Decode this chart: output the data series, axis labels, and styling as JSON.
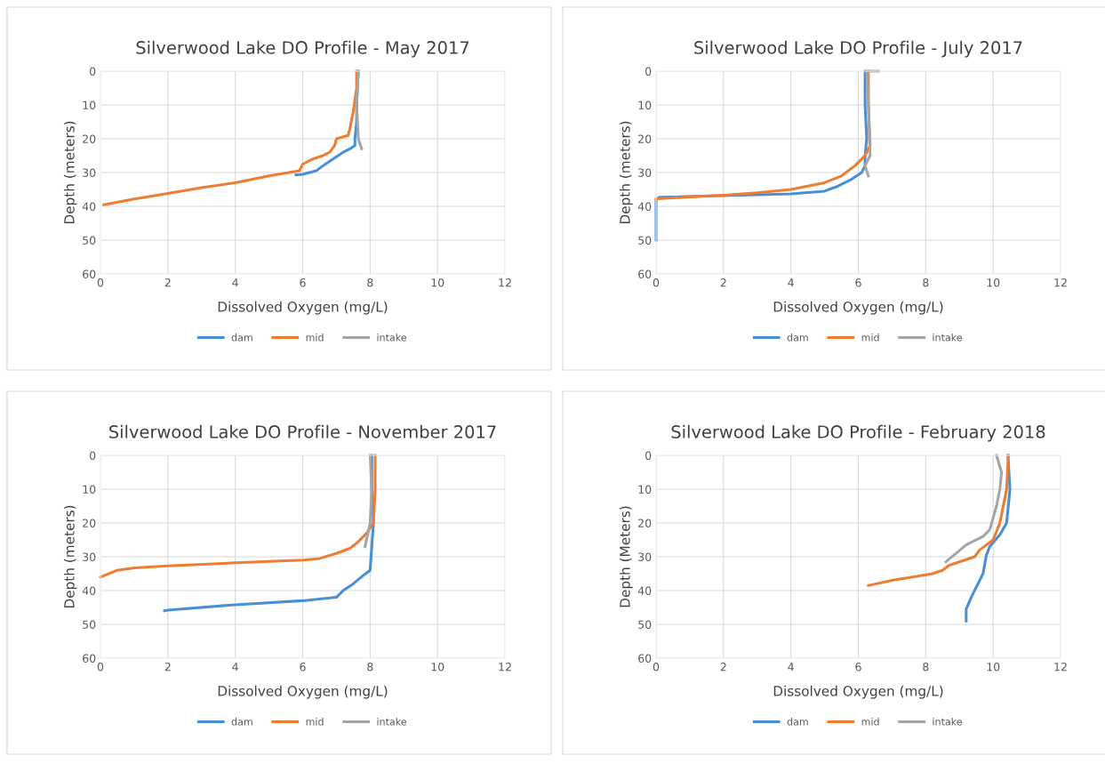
{
  "chart_data": [
    {
      "type": "line",
      "title": "Silverwood Lake DO Profile - May 2017",
      "xlabel": "Dissolved Oxygen (mg/L)",
      "ylabel": "Depth (meters)",
      "xlim": [
        0,
        12
      ],
      "xticks": [
        0,
        2,
        4,
        6,
        8,
        10,
        12
      ],
      "ylim": [
        60,
        0
      ],
      "yticks": [
        0,
        10,
        20,
        30,
        40,
        50,
        60
      ],
      "grid": true,
      "legend": "bottom",
      "series": [
        {
          "name": "dam",
          "color": "#4a8fd4",
          "x": [
            7.65,
            7.6,
            7.6,
            7.55,
            7.55,
            7.4,
            7.2,
            6.9,
            6.6,
            6.4,
            6.0,
            5.8
          ],
          "values": [
            0,
            10,
            15,
            20,
            22,
            23,
            24,
            26,
            28,
            29.5,
            30.5,
            30.7
          ]
        },
        {
          "name": "mid",
          "color": "#ed7d31",
          "x": [
            7.6,
            7.6,
            7.5,
            7.4,
            7.35,
            7.0,
            6.95,
            6.8,
            6.6,
            6.3,
            6.0,
            5.9,
            5.0,
            4.0,
            3.0,
            2.0,
            1.0,
            0.1
          ],
          "values": [
            0,
            5,
            12,
            17,
            19,
            20,
            22,
            24,
            25,
            26,
            27.5,
            29.5,
            31,
            33,
            34.5,
            36.2,
            37.8,
            39.5
          ]
        },
        {
          "name": "intake",
          "color": "#a5a5a5",
          "x": [
            7.65,
            7.6,
            7.65,
            7.75
          ],
          "values": [
            0,
            10,
            20,
            23
          ]
        }
      ]
    },
    {
      "type": "line",
      "title": "Silverwood Lake DO Profile - July 2017",
      "xlabel": "Dissolved Oxygen (mg/L)",
      "ylabel": "Depth (meters)",
      "xlim": [
        0,
        12
      ],
      "xticks": [
        0,
        2,
        4,
        6,
        8,
        10,
        12
      ],
      "ylim": [
        60,
        0
      ],
      "yticks": [
        0,
        10,
        20,
        30,
        40,
        50,
        60
      ],
      "grid": true,
      "legend": "bottom",
      "series": [
        {
          "name": "dam",
          "color": "#4a8fd4",
          "x": [
            6.2,
            6.2,
            6.25,
            6.2,
            6.2,
            6.1,
            5.8,
            5.4,
            5.0,
            4.0,
            0.1,
            0.0,
            0.0
          ],
          "values": [
            0,
            10,
            20,
            25,
            28,
            30,
            32,
            34,
            35.5,
            36.3,
            37.3,
            38,
            50
          ]
        },
        {
          "name": "mid",
          "color": "#ed7d31",
          "x": [
            6.3,
            6.3,
            6.35,
            6.2,
            5.9,
            5.5,
            5.0,
            4.0,
            3.0,
            2.0,
            1.0,
            0.0
          ],
          "values": [
            0,
            10,
            22,
            25,
            28,
            31,
            33,
            35,
            36,
            36.7,
            37.2,
            37.8
          ]
        },
        {
          "name": "intake",
          "color": "#a5a5a5",
          "x": [
            6.6,
            6.25,
            6.3,
            6.35,
            6.2,
            6.3
          ],
          "values": [
            0,
            0,
            10,
            25,
            28,
            31
          ]
        }
      ]
    },
    {
      "type": "line",
      "title": "Silverwood Lake DO Profile - November 2017",
      "xlabel": "Dissolved Oxygen (mg/L)",
      "ylabel": "Depth (meters)",
      "xlim": [
        0,
        12
      ],
      "xticks": [
        0,
        2,
        4,
        6,
        8,
        10,
        12
      ],
      "ylim": [
        60,
        0
      ],
      "yticks": [
        0,
        10,
        20,
        30,
        40,
        50,
        60
      ],
      "grid": true,
      "legend": "bottom",
      "series": [
        {
          "name": "dam",
          "color": "#4a8fd4",
          "x": [
            8.05,
            8.05,
            8.1,
            8.0,
            7.8,
            7.5,
            7.2,
            7.0,
            6.5,
            6.0,
            4.0,
            2.0,
            1.9
          ],
          "values": [
            0,
            10,
            20,
            34,
            35.5,
            38,
            40,
            42,
            42.5,
            43,
            44.2,
            45.8,
            46
          ]
        },
        {
          "name": "mid",
          "color": "#ed7d31",
          "x": [
            8.15,
            8.15,
            8.1,
            7.9,
            7.6,
            7.4,
            7.0,
            6.5,
            6.0,
            4.0,
            2.0,
            1.0,
            0.5,
            0.0
          ],
          "values": [
            0,
            10,
            20,
            23,
            26,
            27.5,
            29,
            30.5,
            31,
            31.8,
            32.7,
            33.3,
            34,
            36
          ]
        },
        {
          "name": "intake",
          "color": "#a5a5a5",
          "x": [
            8.0,
            8.05,
            8.0,
            7.85
          ],
          "values": [
            0,
            10,
            20,
            27
          ]
        }
      ]
    },
    {
      "type": "line",
      "title": "Silverwood Lake DO Profile - February 2018",
      "xlabel": "Dissolved Oxygen (mg/L)",
      "ylabel": "Depth (Meters)",
      "xlim": [
        0,
        12
      ],
      "xticks": [
        0,
        2,
        4,
        6,
        8,
        10,
        12
      ],
      "ylim": [
        60,
        0
      ],
      "yticks": [
        0,
        10,
        20,
        30,
        40,
        50,
        60
      ],
      "grid": true,
      "legend": "bottom",
      "series": [
        {
          "name": "dam",
          "color": "#4a8fd4",
          "x": [
            10.44,
            10.5,
            10.4,
            10.2,
            9.9,
            9.8,
            9.7,
            9.35,
            9.2,
            9.2
          ],
          "values": [
            0,
            10,
            20,
            23.5,
            27,
            29.5,
            35,
            42,
            45.5,
            49
          ]
        },
        {
          "name": "mid",
          "color": "#ed7d31",
          "x": [
            10.45,
            10.4,
            10.2,
            10.0,
            9.6,
            9.45,
            8.7,
            8.5,
            8.2,
            7.0,
            6.3
          ],
          "values": [
            0,
            10,
            20,
            25,
            28,
            30,
            32.5,
            34,
            35,
            37,
            38.5
          ]
        },
        {
          "name": "intake",
          "color": "#a5a5a5",
          "x": [
            10.1,
            10.25,
            10.2,
            10.1,
            9.9,
            9.7,
            9.2,
            8.6
          ],
          "values": [
            0,
            5,
            10,
            15,
            22,
            24,
            26.5,
            31.5
          ]
        }
      ]
    }
  ]
}
